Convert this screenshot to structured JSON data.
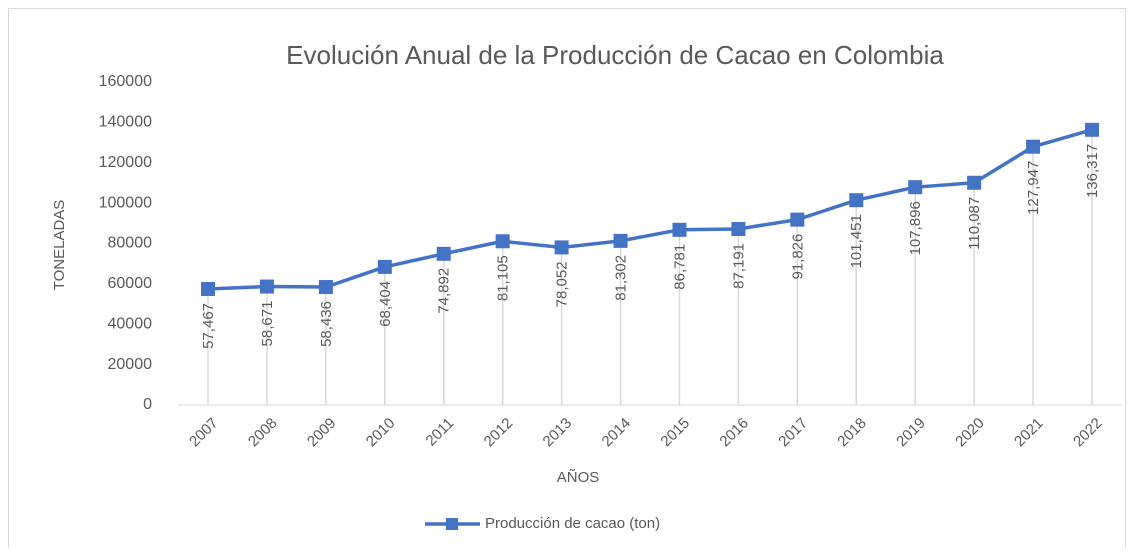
{
  "chart_data": {
    "type": "line",
    "title": "Evolución  Anual de la Producción  de Cacao  en Colombia",
    "x_label": "AÑOS",
    "y_label": "TONELADAS",
    "categories": [
      "2007",
      "2008",
      "2009",
      "2010",
      "2011",
      "2012",
      "2013",
      "2014",
      "2015",
      "2016",
      "2017",
      "2018",
      "2019",
      "2020",
      "2021",
      "2022"
    ],
    "series": [
      {
        "name": "Producción de cacao (ton)",
        "color": "#4472c4",
        "values": [
          57467,
          58671,
          58436,
          68404,
          74892,
          81105,
          78052,
          81302,
          86781,
          87191,
          91826,
          101451,
          107896,
          110087,
          127947,
          136317
        ],
        "value_labels": [
          "57,467",
          "58,671",
          "58,436",
          "68,404",
          "74,892",
          "81,105",
          "78,052",
          "81,302",
          "86,781",
          "87,191",
          "91,826",
          "101,451",
          "107,896",
          "110,087",
          "127,947",
          "136,317"
        ]
      }
    ],
    "ylim": [
      0,
      160000
    ],
    "yticks": [
      0,
      20000,
      40000,
      60000,
      80000,
      100000,
      120000,
      140000,
      160000
    ],
    "drop_lines": true,
    "legend": "bottom"
  }
}
